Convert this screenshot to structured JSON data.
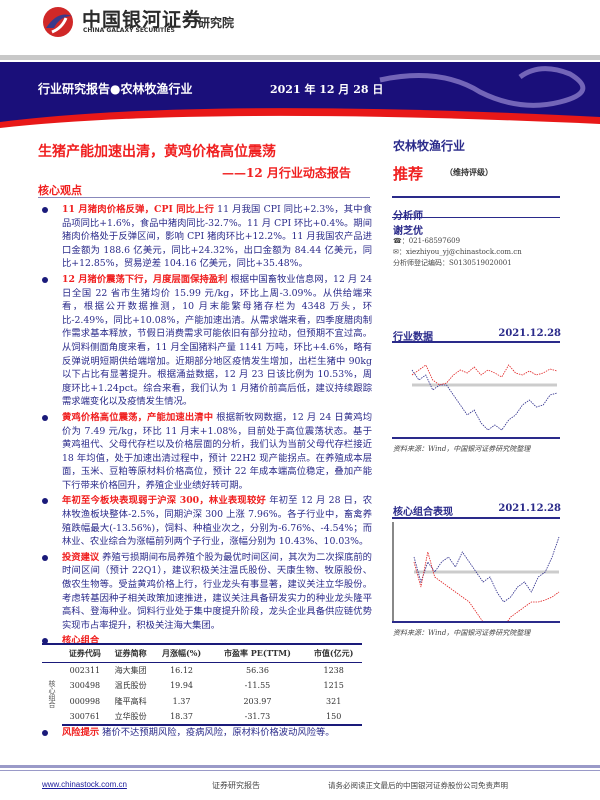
{
  "header": {
    "logo_cn": "中国银河证券",
    "logo_en": "CHINA GALAXY SECURITIES",
    "institute": "研究院",
    "band_left": "行业研究报告●农林牧渔行业",
    "band_date": "2021 年 12 月 28 日"
  },
  "report": {
    "title": "生猪产能加速出清，黄鸡价格高位震荡",
    "subtitle": "——12 月行业动态报告",
    "core_heading": "核心观点"
  },
  "bullets": [
    {
      "head": "11 月猪肉价格反弹，CPI 同比上行",
      "body": " 11 月我国 CPI 同比+2.3%，其中食品项同比+1.6%，食品中猪肉同比-32.7%。11 月 CPI 环比+0.4%。期间猪肉价格处于反弹区间，影响 CPI 猪肉环比+12.2%。11 月我国农产品进口金额为 188.6 亿美元，同比+24.32%，出口金额为 84.44 亿美元，同比+12.85%，贸易逆差 104.16 亿美元，同比+35.48%。"
    },
    {
      "head": "12 月猪价震荡下行，月度层面保持盈利",
      "body": " 根据中国畜牧业信息网，12 月 24 日全国 22 省市生猪均价 15.99 元/kg，环比上周-3.09%。从供给端来看，根据公开数据推测，10 月末能繁母猪存栏为 4348 万头，环比-2.49%，同比+10.08%，产能加速出清。从需求端来看，四季度腊肉制作需求基本释放，节假日消费需求可能依旧有部分拉动，但预期不宜过高。从饲料侧面角度来看，11 月全国猪料产量 1141 万吨，环比+4.6%，略有反弹说明短期供给端增加。近期部分地区疫情发生增加，出栏生猪中 90kg 以下占比有显著提升。根据涌益数据，12 月 23 日该比例为 10.53%，周度环比+1.24pct。综合来看，我们认为 1 月猪价前高后低，建议持续跟踪需求端变化以及疫情发生情况。"
    },
    {
      "head": "黄鸡价格高位震荡，产能加速出清中",
      "body": " 根据新牧网数据，12 月 24 日黄鸡均价为 7.49 元/kg，环比 11 月末+1.08%，目前处于高位震荡状态。基于黄鸡祖代、父母代存栏以及价格层面的分析，我们认为当前父母代存栏接近 18 年均值，处于加速出清过程中，预计 22H2 现产能拐点。在养殖成本层面，玉米、豆粕等原材料价格高位，预计 22 年成本端高位稳定，叠加产能下行带来价格回升，养殖企业业绩好转可期。"
    },
    {
      "head": "年初至今板块表现弱于沪深 300，林业表现较好",
      "body": " 年初至 12 月 28 日，农林牧渔板块整体-2.5%，同期沪深 300 上涨 7.96%。各子行业中，畜禽养殖跌幅最大(-13.56%)，饲料、种植业次之，分别为-6.76%、-4.54%；而林业、农业综合为涨幅前列两个子行业，涨幅分别为 10.43%、10.03%。"
    },
    {
      "head": "投资建议",
      "body": " 养殖亏损期间布局养殖个股为最优时间区间，其次为二次探底前的时间区间（预计 22Q1），建议积极关注温氏股份、天康生物、牧原股份、傲农生物等。受益黄鸡价格上行，行业龙头有事显著，建议关注立华股份。考虑转基因种子相关政策加速推进，建议关注具备研发实力的种业龙头隆平高科、登海种业。饲料行业处于集中度提升阶段，龙头企业具备供应链优势实现市占率提升，积极关注海大集团。"
    }
  ],
  "portfolio": {
    "heading": "核心组合",
    "side_label": "核心组合",
    "columns": [
      "证券代码",
      "证券简称",
      "月涨幅(%)",
      "市盈率 PE(TTM)",
      "市值(亿元)"
    ],
    "rows": [
      [
        "002311",
        "海大集团",
        "16.12",
        "56.36",
        "1238"
      ],
      [
        "300498",
        "温氏股份",
        "19.94",
        "-11.55",
        "1215"
      ],
      [
        "000998",
        "隆平高科",
        "1.37",
        "203.97",
        "321"
      ],
      [
        "300761",
        "立华股份",
        "18.37",
        "-31.73",
        "150"
      ]
    ]
  },
  "risk": {
    "head": "风险提示",
    "body": " 猪价不达预期风险，疫病风险，原材料价格波动风险等。"
  },
  "sidebar": {
    "sector": "农林牧渔行业",
    "rating": "推荐",
    "rating_note": "（维持评级）",
    "analyst_head": "分析师",
    "analyst_name": "谢芝优",
    "phone": "☎：021-68597609",
    "email": "✉：xiezhiyou_yj@chinastock.com.cn",
    "reg": "分析师登记编码：S0130519020001",
    "industry_data": "行业数据",
    "industry_date": "2021.12.28",
    "source1": "资料来源：Wind，中国银河证券研究院整理",
    "core_perf": "核心组合表现",
    "core_date": "2021.12.28",
    "source2": "资料来源：Wind，中国银河证券研究院整理"
  },
  "footer": {
    "url": "www.chinastock.com.cn",
    "mid": "证券研究报告",
    "right": "请务必阅读正文最后的中国银河证券股份公司免责声明"
  },
  "colors": {
    "navy": "#1a0f7a",
    "red": "#f02020"
  }
}
